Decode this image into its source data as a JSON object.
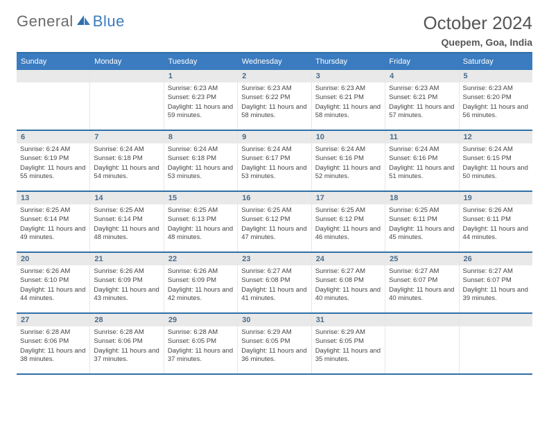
{
  "logo": {
    "general": "General",
    "blue": "Blue"
  },
  "title": "October 2024",
  "location": "Quepem, Goa, India",
  "colors": {
    "header_bg": "#3b7bbf",
    "header_border": "#2f6fa8",
    "daynum_bg": "#e9e9e9",
    "daynum_fg": "#4a6b8a",
    "grid_line": "#e6e6e6",
    "text": "#444444",
    "logo_gray": "#6a6a6a",
    "logo_blue": "#3b7bbf"
  },
  "dow": [
    "Sunday",
    "Monday",
    "Tuesday",
    "Wednesday",
    "Thursday",
    "Friday",
    "Saturday"
  ],
  "weeks": [
    [
      {
        "empty": true
      },
      {
        "empty": true
      },
      {
        "day": "1",
        "sunrise": "Sunrise: 6:23 AM",
        "sunset": "Sunset: 6:23 PM",
        "daylight": "Daylight: 11 hours and 59 minutes."
      },
      {
        "day": "2",
        "sunrise": "Sunrise: 6:23 AM",
        "sunset": "Sunset: 6:22 PM",
        "daylight": "Daylight: 11 hours and 58 minutes."
      },
      {
        "day": "3",
        "sunrise": "Sunrise: 6:23 AM",
        "sunset": "Sunset: 6:21 PM",
        "daylight": "Daylight: 11 hours and 58 minutes."
      },
      {
        "day": "4",
        "sunrise": "Sunrise: 6:23 AM",
        "sunset": "Sunset: 6:21 PM",
        "daylight": "Daylight: 11 hours and 57 minutes."
      },
      {
        "day": "5",
        "sunrise": "Sunrise: 6:23 AM",
        "sunset": "Sunset: 6:20 PM",
        "daylight": "Daylight: 11 hours and 56 minutes."
      }
    ],
    [
      {
        "day": "6",
        "sunrise": "Sunrise: 6:24 AM",
        "sunset": "Sunset: 6:19 PM",
        "daylight": "Daylight: 11 hours and 55 minutes."
      },
      {
        "day": "7",
        "sunrise": "Sunrise: 6:24 AM",
        "sunset": "Sunset: 6:18 PM",
        "daylight": "Daylight: 11 hours and 54 minutes."
      },
      {
        "day": "8",
        "sunrise": "Sunrise: 6:24 AM",
        "sunset": "Sunset: 6:18 PM",
        "daylight": "Daylight: 11 hours and 53 minutes."
      },
      {
        "day": "9",
        "sunrise": "Sunrise: 6:24 AM",
        "sunset": "Sunset: 6:17 PM",
        "daylight": "Daylight: 11 hours and 53 minutes."
      },
      {
        "day": "10",
        "sunrise": "Sunrise: 6:24 AM",
        "sunset": "Sunset: 6:16 PM",
        "daylight": "Daylight: 11 hours and 52 minutes."
      },
      {
        "day": "11",
        "sunrise": "Sunrise: 6:24 AM",
        "sunset": "Sunset: 6:16 PM",
        "daylight": "Daylight: 11 hours and 51 minutes."
      },
      {
        "day": "12",
        "sunrise": "Sunrise: 6:24 AM",
        "sunset": "Sunset: 6:15 PM",
        "daylight": "Daylight: 11 hours and 50 minutes."
      }
    ],
    [
      {
        "day": "13",
        "sunrise": "Sunrise: 6:25 AM",
        "sunset": "Sunset: 6:14 PM",
        "daylight": "Daylight: 11 hours and 49 minutes."
      },
      {
        "day": "14",
        "sunrise": "Sunrise: 6:25 AM",
        "sunset": "Sunset: 6:14 PM",
        "daylight": "Daylight: 11 hours and 48 minutes."
      },
      {
        "day": "15",
        "sunrise": "Sunrise: 6:25 AM",
        "sunset": "Sunset: 6:13 PM",
        "daylight": "Daylight: 11 hours and 48 minutes."
      },
      {
        "day": "16",
        "sunrise": "Sunrise: 6:25 AM",
        "sunset": "Sunset: 6:12 PM",
        "daylight": "Daylight: 11 hours and 47 minutes."
      },
      {
        "day": "17",
        "sunrise": "Sunrise: 6:25 AM",
        "sunset": "Sunset: 6:12 PM",
        "daylight": "Daylight: 11 hours and 46 minutes."
      },
      {
        "day": "18",
        "sunrise": "Sunrise: 6:25 AM",
        "sunset": "Sunset: 6:11 PM",
        "daylight": "Daylight: 11 hours and 45 minutes."
      },
      {
        "day": "19",
        "sunrise": "Sunrise: 6:26 AM",
        "sunset": "Sunset: 6:11 PM",
        "daylight": "Daylight: 11 hours and 44 minutes."
      }
    ],
    [
      {
        "day": "20",
        "sunrise": "Sunrise: 6:26 AM",
        "sunset": "Sunset: 6:10 PM",
        "daylight": "Daylight: 11 hours and 44 minutes."
      },
      {
        "day": "21",
        "sunrise": "Sunrise: 6:26 AM",
        "sunset": "Sunset: 6:09 PM",
        "daylight": "Daylight: 11 hours and 43 minutes."
      },
      {
        "day": "22",
        "sunrise": "Sunrise: 6:26 AM",
        "sunset": "Sunset: 6:09 PM",
        "daylight": "Daylight: 11 hours and 42 minutes."
      },
      {
        "day": "23",
        "sunrise": "Sunrise: 6:27 AM",
        "sunset": "Sunset: 6:08 PM",
        "daylight": "Daylight: 11 hours and 41 minutes."
      },
      {
        "day": "24",
        "sunrise": "Sunrise: 6:27 AM",
        "sunset": "Sunset: 6:08 PM",
        "daylight": "Daylight: 11 hours and 40 minutes."
      },
      {
        "day": "25",
        "sunrise": "Sunrise: 6:27 AM",
        "sunset": "Sunset: 6:07 PM",
        "daylight": "Daylight: 11 hours and 40 minutes."
      },
      {
        "day": "26",
        "sunrise": "Sunrise: 6:27 AM",
        "sunset": "Sunset: 6:07 PM",
        "daylight": "Daylight: 11 hours and 39 minutes."
      }
    ],
    [
      {
        "day": "27",
        "sunrise": "Sunrise: 6:28 AM",
        "sunset": "Sunset: 6:06 PM",
        "daylight": "Daylight: 11 hours and 38 minutes."
      },
      {
        "day": "28",
        "sunrise": "Sunrise: 6:28 AM",
        "sunset": "Sunset: 6:06 PM",
        "daylight": "Daylight: 11 hours and 37 minutes."
      },
      {
        "day": "29",
        "sunrise": "Sunrise: 6:28 AM",
        "sunset": "Sunset: 6:05 PM",
        "daylight": "Daylight: 11 hours and 37 minutes."
      },
      {
        "day": "30",
        "sunrise": "Sunrise: 6:29 AM",
        "sunset": "Sunset: 6:05 PM",
        "daylight": "Daylight: 11 hours and 36 minutes."
      },
      {
        "day": "31",
        "sunrise": "Sunrise: 6:29 AM",
        "sunset": "Sunset: 6:05 PM",
        "daylight": "Daylight: 11 hours and 35 minutes."
      },
      {
        "empty": true
      },
      {
        "empty": true
      }
    ]
  ]
}
